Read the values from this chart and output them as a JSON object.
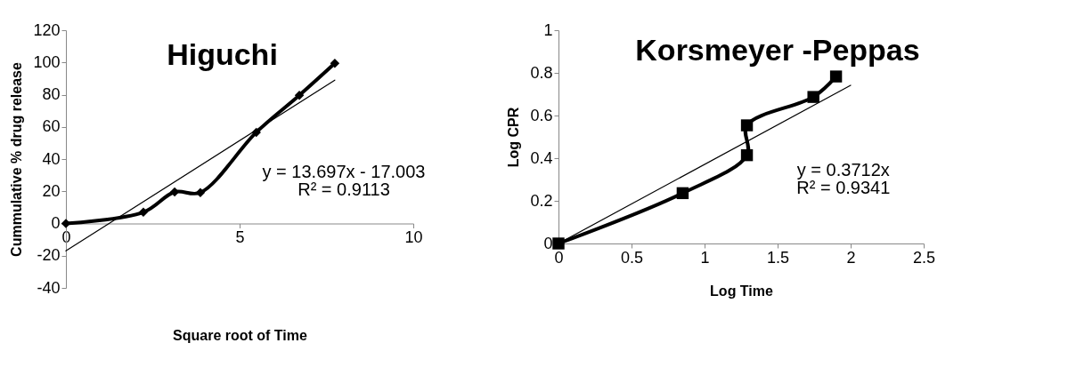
{
  "chart_data": [
    {
      "type": "line",
      "title": "Higuchi",
      "xlabel": "Square root of Time",
      "ylabel": "Cummulative % drug release",
      "xlim": [
        0,
        10
      ],
      "xticks": [
        0,
        5,
        10
      ],
      "ylim": [
        -40,
        120
      ],
      "yticks": [
        -40,
        -20,
        0,
        20,
        40,
        60,
        80,
        100,
        120
      ],
      "grid": false,
      "annotations": [
        "y = 13.697x - 17.003",
        "R² = 0.9113"
      ],
      "series": [
        {
          "color": "#000000",
          "marker": "diamond",
          "x": [
            0,
            2.23,
            3.13,
            3.87,
            5.48,
            6.72,
            7.74
          ],
          "values": [
            0,
            7,
            19.6,
            19.2,
            56.6,
            79.6,
            99.4
          ]
        },
        {
          "color": "#000000",
          "marker": "none",
          "x": [
            0,
            7.74
          ],
          "values": [
            -17.0,
            89.0
          ]
        }
      ]
    },
    {
      "type": "line",
      "title": "Korsmeyer -Peppas",
      "xlabel": "Log Time",
      "ylabel": "Log CPR",
      "xlim": [
        0,
        2.5
      ],
      "xticks": [
        0,
        0.5,
        1,
        1.5,
        2,
        2.5
      ],
      "ylim": [
        0,
        1
      ],
      "yticks": [
        0,
        0.2,
        0.4,
        0.6,
        0.8,
        1
      ],
      "grid": false,
      "annotations": [
        "y = 0.3712x",
        "R² = 0.9341"
      ],
      "series": [
        {
          "color": "#000000",
          "marker": "square",
          "x": [
            0,
            0.85,
            1.29,
            1.29,
            1.745,
            1.9
          ],
          "values": [
            0,
            0.236,
            0.414,
            0.554,
            0.687,
            0.783
          ]
        },
        {
          "color": "#000000",
          "marker": "none",
          "x": [
            0,
            2.0
          ],
          "values": [
            0,
            0.742
          ]
        }
      ]
    }
  ]
}
